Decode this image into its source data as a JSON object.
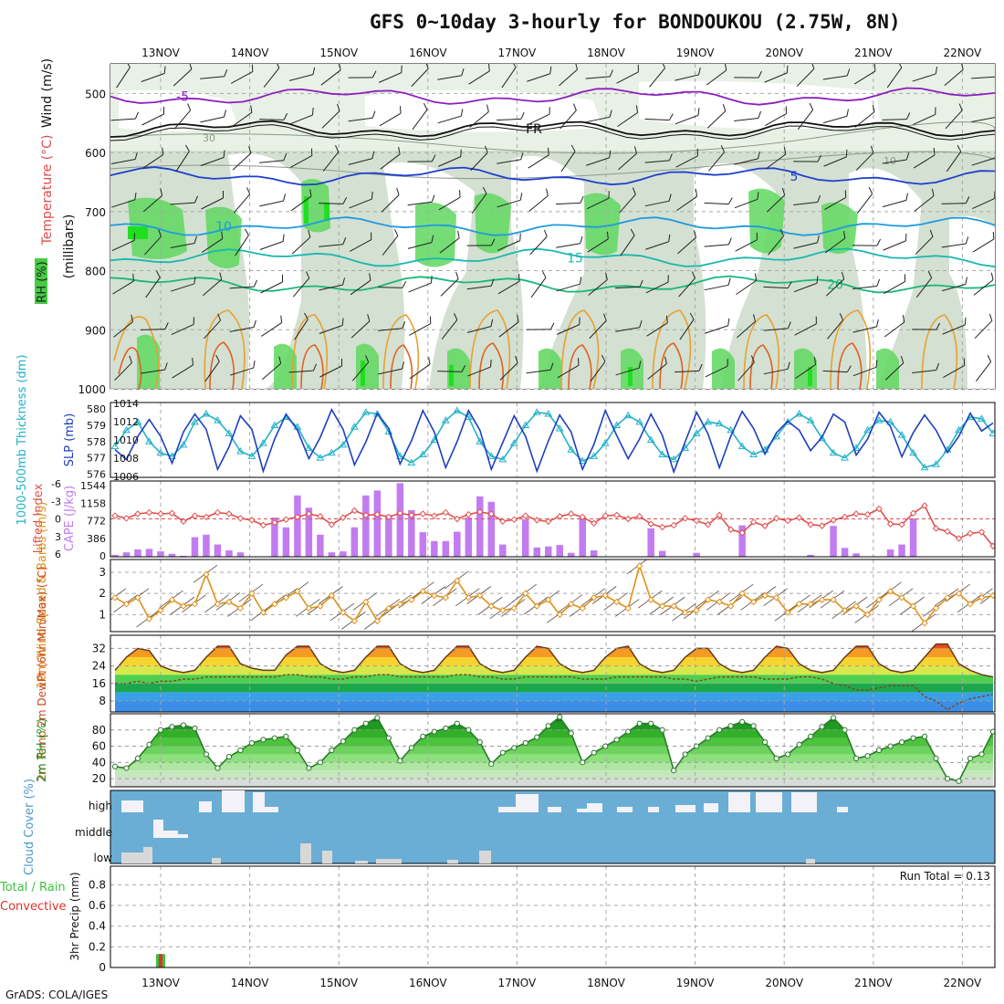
{
  "title": "GFS 0~10day 3-hourly for BONDOUKOU (2.75W, 8N)",
  "credit": "GrADS: COLA/IGES",
  "chart_data": [
    {
      "type": "heatmap",
      "panel": "upper-air cross-section",
      "ylabel": "(millibars)",
      "legend_labels": [
        "RH (%)",
        "Temperature (°C)",
        "Wind (m/s)"
      ],
      "xticks": [
        "13NOV",
        "14NOV",
        "15NOV",
        "16NOV",
        "17NOV",
        "18NOV",
        "19NOV",
        "20NOV",
        "21NOV",
        "22NOV"
      ],
      "yticks": [
        500,
        600,
        700,
        800,
        900,
        1000
      ],
      "ylim": [
        450,
        1000
      ],
      "isotherms": [
        {
          "label": "-5",
          "level": 505,
          "color": "#8b1fbf"
        },
        {
          "label": "FR",
          "level": 560,
          "color": "#111111"
        },
        {
          "label": "5",
          "level": 640,
          "color": "#1d3fcf"
        },
        {
          "label": "10",
          "level": 725,
          "color": "#1e9be0"
        },
        {
          "label": "15",
          "level": 778,
          "color": "#19b8b0"
        },
        {
          "label": "20",
          "level": 823,
          "color": "#18b77a"
        }
      ],
      "rh_labels": [
        "30",
        "10"
      ]
    },
    {
      "type": "line",
      "panel": "thickness-slp",
      "left_label": "1000-500mb Thickness (dm)",
      "right_label": "SLP (mb)",
      "left_ticks": [
        "576",
        "577",
        "578",
        "579",
        "580"
      ],
      "right_ticks": [
        "1006",
        "1008",
        "1010",
        "1012",
        "1014"
      ],
      "series": [
        {
          "name": "1000-500mb Thickness (dm)",
          "color": "#22b2c8",
          "ylim": [
            575.8,
            580.4
          ],
          "values": [
            577.7,
            578.7,
            579.2,
            578.0,
            577.3,
            577.1,
            577.8,
            579.2,
            579.7,
            579.3,
            578.5,
            577.4,
            577.1,
            577.9,
            579.0,
            579.5,
            578.9,
            577.6,
            577.0,
            577.3,
            577.8,
            578.9,
            579.8,
            579.7,
            578.6,
            577.1,
            576.7,
            577.2,
            578.1,
            579.3,
            579.9,
            579.5,
            578.0,
            577.1,
            576.9,
            577.9,
            579.0,
            579.8,
            579.7,
            578.8,
            577.5,
            576.8,
            577.1,
            577.9,
            579.0,
            579.6,
            579.2,
            578.1,
            577.2,
            576.9,
            577.6,
            578.5,
            579.2,
            579.1,
            578.7,
            577.7,
            577.2,
            577.5,
            578.3,
            579.2,
            579.7,
            579.3,
            578.2,
            577.3,
            577.0,
            577.6,
            578.7,
            579.3,
            579.2,
            578.4,
            577.3,
            576.4,
            576.6,
            577.5,
            578.7,
            579.5,
            579.4,
            578.5
          ]
        },
        {
          "name": "SLP (mb)",
          "color": "#1f3fbe",
          "ylim": [
            1005.9,
            1014.3
          ],
          "values": [
            1009.0,
            1007.9,
            1010.5,
            1012.4,
            1010.5,
            1007.5,
            1011.0,
            1013.0,
            1011.3,
            1006.8,
            1009.3,
            1012.8,
            1011.3,
            1006.6,
            1010.2,
            1013.0,
            1011.2,
            1008.0,
            1010.4,
            1013.5,
            1011.3,
            1007.3,
            1009.9,
            1013.1,
            1011.4,
            1007.4,
            1010.0,
            1013.4,
            1011.0,
            1007.0,
            1009.9,
            1013.4,
            1011.2,
            1006.8,
            1009.8,
            1012.8,
            1010.5,
            1006.6,
            1010.0,
            1012.9,
            1011.0,
            1006.8,
            1009.6,
            1013.4,
            1010.6,
            1008.0,
            1010.2,
            1013.0,
            1010.6,
            1006.5,
            1009.9,
            1013.2,
            1010.8,
            1007.0,
            1010.5,
            1013.3,
            1011.4,
            1008.5,
            1010.9,
            1012.2,
            1011.2,
            1008.9,
            1010.4,
            1013.0,
            1012.1,
            1008.4,
            1010.2,
            1013.2,
            1011.6,
            1008.2,
            1010.9,
            1012.9,
            1011.2,
            1008.7,
            1010.5,
            1013.1,
            1011.1,
            1012.0
          ]
        }
      ]
    },
    {
      "type": "bar",
      "panel": "lifted-index-cape",
      "left_label": "Lifted Index",
      "right_label": "CAPE (J/kg)",
      "left_ticks": [
        "-6",
        "-3",
        "0",
        "3",
        "6"
      ],
      "right_ticks": [
        "1544",
        "1158",
        "772",
        "386",
        "0"
      ],
      "series": [
        {
          "name": "CAPE (J/kg)",
          "color": "#c27cf0",
          "type": "bar",
          "ylim": [
            0,
            1544
          ],
          "values": [
            40,
            90,
            150,
            160,
            110,
            60,
            20,
            400,
            450,
            250,
            130,
            90,
            0,
            0,
            800,
            600,
            1250,
            1000,
            450,
            90,
            110,
            600,
            1250,
            1350,
            850,
            1500,
            950,
            500,
            320,
            320,
            510,
            800,
            1230,
            1120,
            250,
            0,
            760,
            190,
            210,
            240,
            80,
            800,
            130,
            0,
            0,
            0,
            0,
            580,
            120,
            0,
            0,
            80,
            0,
            0,
            0,
            640,
            0,
            0,
            0,
            0,
            0,
            40,
            0,
            630,
            180,
            70,
            0,
            0,
            150,
            250,
            780,
            0,
            0,
            0,
            0,
            0,
            0,
            0
          ]
        },
        {
          "name": "Lifted Index",
          "color": "#e05050",
          "type": "line",
          "ylim": [
            6,
            -6
          ],
          "values": [
            -0.5,
            -0.1,
            -0.8,
            -1.0,
            -0.8,
            -0.9,
            0.4,
            -0.5,
            -0.3,
            -1.0,
            -0.8,
            -0.1,
            0.2,
            1.0,
            0.6,
            0.1,
            -0.3,
            -0.8,
            -0.4,
            0.9,
            -0.2,
            -1.3,
            -0.6,
            -0.7,
            -0.3,
            -0.9,
            -0.6,
            -0.8,
            -0.5,
            -1.0,
            0.0,
            -0.7,
            -1.1,
            -0.8,
            0.4,
            0.1,
            -0.5,
            0.2,
            0.4,
            -0.4,
            -0.8,
            -0.3,
            0.7,
            -0.5,
            -0.6,
            0.0,
            -0.4,
            0.8,
            1.3,
            1.0,
            -0.1,
            0.3,
            0.9,
            -0.6,
            1.7,
            2.2,
            0.5,
            1.1,
            -0.1,
            0.3,
            -0.2,
            0.9,
            1.1,
            0.2,
            -0.3,
            -0.8,
            -0.7,
            -1.6,
            0.8,
            0.9,
            -0.9,
            -2.1,
            1.5,
            2.0,
            3.1,
            2.3,
            2.1,
            4.3
          ]
        }
      ]
    },
    {
      "type": "line",
      "panel": "10m-wind",
      "ylabel": "10m Wind Speed & Barbs (m/s)",
      "yticks": [
        "1",
        "2",
        "3"
      ],
      "ylim": [
        0.2,
        3.6
      ],
      "series": [
        {
          "name": "10m Wind Speed (m/s)",
          "color": "#e0901a",
          "values": [
            1.8,
            1.5,
            1.8,
            0.8,
            1.2,
            1.7,
            1.4,
            1.5,
            2.9,
            1.5,
            1.6,
            1.3,
            2.0,
            1.1,
            1.5,
            1.8,
            2.1,
            1.3,
            1.4,
            1.9,
            1.1,
            0.7,
            1.6,
            0.7,
            1.3,
            1.5,
            1.7,
            2.1,
            1.9,
            1.8,
            2.6,
            1.8,
            1.9,
            1.4,
            1.2,
            1.3,
            2.0,
            1.4,
            1.7,
            1.0,
            1.5,
            1.3,
            1.8,
            1.9,
            1.6,
            1.3,
            3.3,
            1.7,
            1.4,
            1.4,
            1.1,
            1.2,
            1.7,
            1.6,
            1.4,
            2.0,
            1.6,
            1.9,
            1.8,
            1.1,
            1.5,
            1.5,
            1.7,
            1.7,
            1.2,
            1.4,
            1.0,
            1.7,
            2.1,
            1.8,
            1.4,
            0.6,
            1.3,
            1.8,
            2.0,
            1.5,
            1.8,
            1.9
          ]
        }
      ]
    },
    {
      "type": "area",
      "panel": "2m-temp",
      "ylabel": "2m Temp 2m DewPt (6hr Min/Max) (°C)",
      "yticks": [
        "8",
        "16",
        "24",
        "32"
      ],
      "ylim": [
        3,
        38
      ],
      "series": [
        {
          "name": "2m Temp",
          "values": [
            22,
            28,
            32,
            31,
            24,
            22,
            21,
            22,
            28,
            33,
            33,
            25,
            23,
            22,
            22,
            29,
            33,
            33,
            25,
            22,
            21,
            22,
            28,
            33,
            33,
            25,
            22,
            21,
            22,
            28,
            33,
            33,
            25,
            22,
            21,
            22,
            28,
            33,
            32,
            25,
            22,
            21,
            22,
            28,
            32,
            33,
            25,
            22,
            21,
            22,
            28,
            32,
            32,
            25,
            22,
            21,
            22,
            28,
            33,
            32,
            25,
            22,
            21,
            22,
            28,
            33,
            33,
            25,
            22,
            21,
            22,
            28,
            34,
            34,
            25,
            22,
            20,
            19
          ]
        },
        {
          "name": "2m DewPt",
          "values": [
            16,
            16,
            17,
            16,
            17,
            17,
            18,
            18,
            19,
            19,
            19,
            19,
            19,
            19,
            19,
            20,
            20,
            19,
            19,
            18,
            18,
            19,
            19,
            20,
            20,
            19,
            19,
            19,
            19,
            19,
            20,
            20,
            19,
            19,
            18,
            18,
            19,
            19,
            19,
            19,
            19,
            18,
            18,
            18,
            19,
            19,
            19,
            19,
            19,
            18,
            18,
            17,
            18,
            19,
            19,
            19,
            19,
            18,
            18,
            18,
            19,
            19,
            18,
            16,
            15,
            13,
            13,
            14,
            15,
            15,
            15,
            10,
            8,
            4,
            7,
            9,
            10,
            11
          ]
        }
      ]
    },
    {
      "type": "area",
      "panel": "2m-rh",
      "ylabel": "2m RH (%)",
      "yticks": [
        "20",
        "40",
        "60",
        "80"
      ],
      "ylim": [
        10,
        100
      ],
      "series": [
        {
          "name": "2m RH (%)",
          "values": [
            35,
            33,
            45,
            62,
            80,
            84,
            86,
            82,
            50,
            33,
            47,
            55,
            64,
            68,
            70,
            72,
            55,
            33,
            40,
            55,
            66,
            80,
            88,
            95,
            70,
            42,
            58,
            72,
            78,
            82,
            88,
            80,
            65,
            38,
            52,
            58,
            64,
            71,
            85,
            96,
            76,
            40,
            52,
            60,
            68,
            78,
            88,
            88,
            80,
            30,
            50,
            60,
            70,
            80,
            85,
            90,
            85,
            65,
            45,
            50,
            62,
            72,
            84,
            95,
            80,
            45,
            48,
            55,
            60,
            65,
            70,
            72,
            45,
            20,
            17,
            45,
            50,
            78
          ]
        }
      ]
    },
    {
      "type": "bar",
      "panel": "cloud-cover",
      "ylabel": "Cloud Cover (%)",
      "layers": [
        "high",
        "middle",
        "low"
      ]
    },
    {
      "type": "bar",
      "panel": "precip",
      "ylabel": "3hr Precip (mm)",
      "left_label": "Total / Rain",
      "right_label": "Convective",
      "yticks": [
        "0",
        "0.2",
        "0.4",
        "0.6",
        "0.8"
      ],
      "ylim": [
        0,
        0.98
      ],
      "run_total": "Run Total = 0.13",
      "categories": [
        "13NOV"
      ],
      "values": [
        0.13
      ]
    }
  ]
}
